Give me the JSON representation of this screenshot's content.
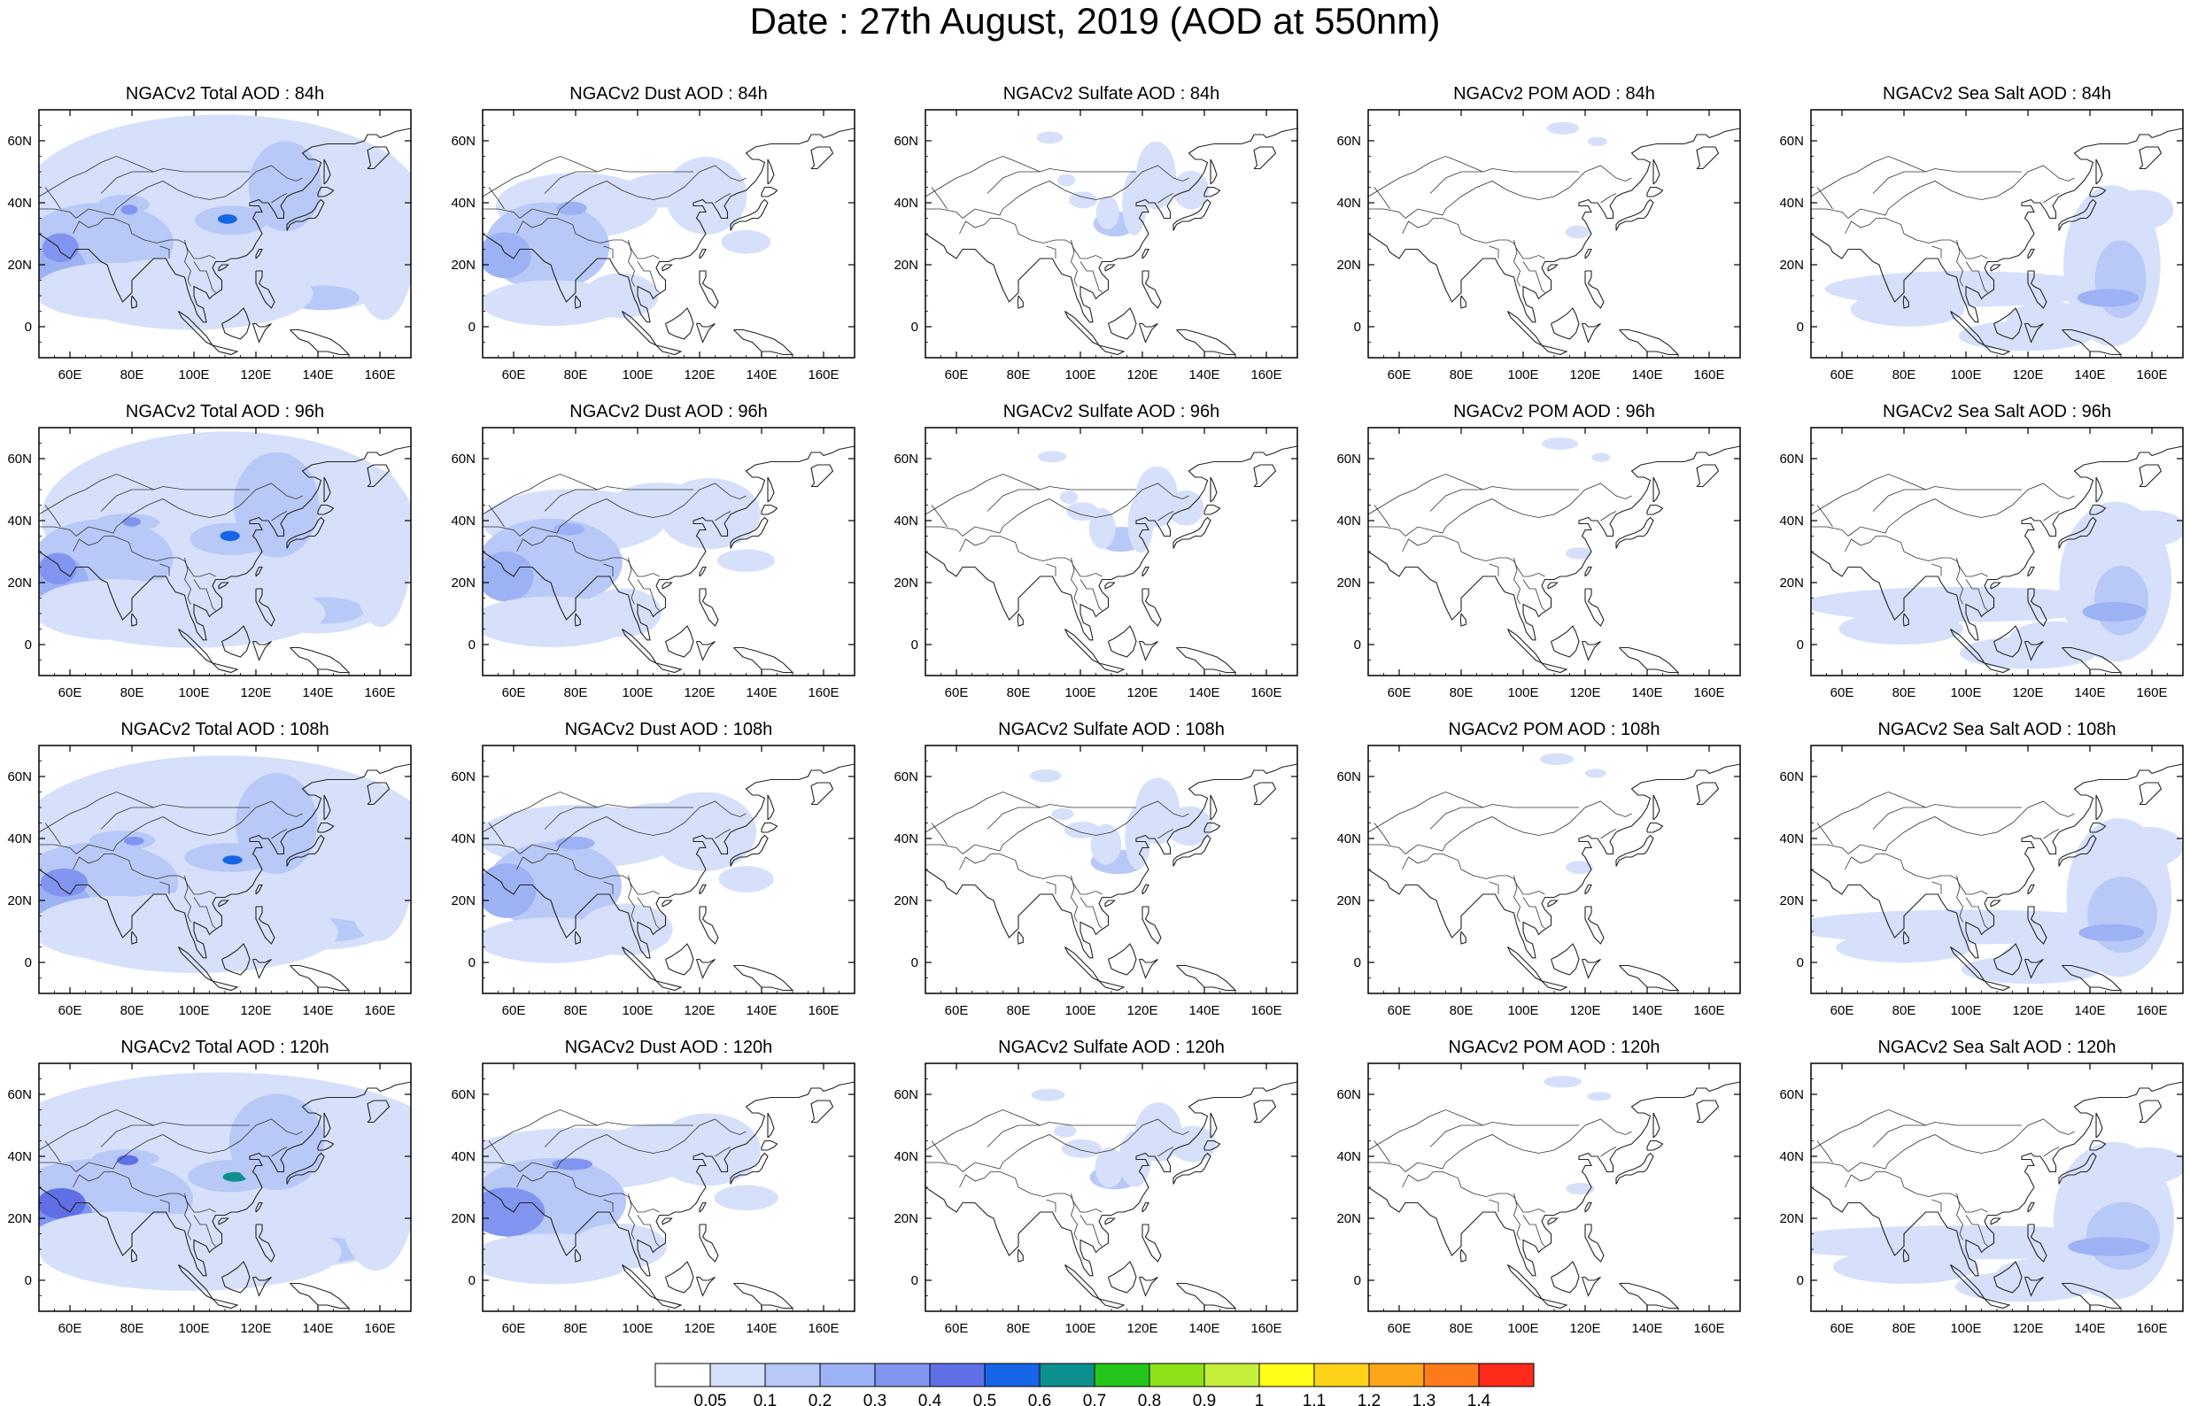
{
  "title": "Date : 27th August, 2019 (AOD at 550nm)",
  "map": {
    "lon_range": [
      50,
      170
    ],
    "lat_range": [
      -10,
      70
    ],
    "lon_ticks": [
      60,
      80,
      100,
      120,
      140,
      160
    ],
    "lat_ticks": [
      0,
      20,
      40,
      60
    ],
    "lon_tick_labels": [
      "60E",
      "80E",
      "100E",
      "120E",
      "140E",
      "160E"
    ],
    "lat_tick_labels": [
      "0",
      "20N",
      "40N",
      "60N"
    ]
  },
  "panels": [
    [
      "NGACv2 Total AOD : 84h",
      "NGACv2 Dust AOD : 84h",
      "NGACv2 Sulfate AOD : 84h",
      "NGACv2 POM AOD : 84h",
      "NGACv2 Sea Salt AOD : 84h"
    ],
    [
      "NGACv2 Total AOD : 96h",
      "NGACv2 Dust AOD : 96h",
      "NGACv2 Sulfate AOD : 96h",
      "NGACv2 POM AOD : 96h",
      "NGACv2 Sea Salt AOD : 96h"
    ],
    [
      "NGACv2 Total AOD : 108h",
      "NGACv2 Dust AOD : 108h",
      "NGACv2 Sulfate AOD : 108h",
      "NGACv2 POM AOD : 108h",
      "NGACv2 Sea Salt AOD : 108h"
    ],
    [
      "NGACv2 Total AOD : 120h",
      "NGACv2 Dust AOD : 120h",
      "NGACv2 Sulfate AOD : 120h",
      "NGACv2 POM AOD : 120h",
      "NGACv2 Sea Salt  AOD : 120h"
    ]
  ],
  "colorbar": {
    "labels": [
      "0.05",
      "0.1",
      "0.2",
      "0.3",
      "0.4",
      "0.5",
      "0.6",
      "0.7",
      "0.8",
      "0.9",
      "1",
      "1.1",
      "1.2",
      "1.3",
      "1.4"
    ],
    "colors": [
      "#ffffff",
      "#d6e0fb",
      "#b8c9f8",
      "#9db1f5",
      "#8195f0",
      "#5f6fe6",
      "#1565e6",
      "#0e8f8f",
      "#25c51c",
      "#8fe21a",
      "#c5ef3a",
      "#ffff1a",
      "#ffd21a",
      "#ffa51a",
      "#ff7a1a",
      "#ff2a1a"
    ]
  }
}
